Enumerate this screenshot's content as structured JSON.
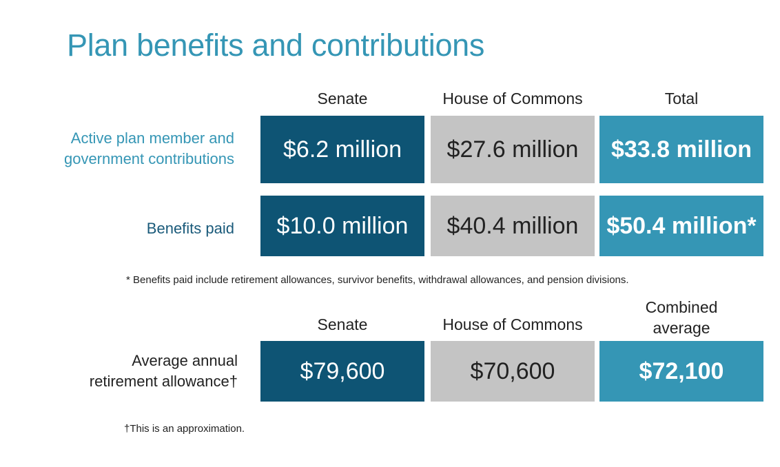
{
  "title": "Plan benefits and contributions",
  "table1": {
    "headers": [
      "Senate",
      "House of Commons",
      "Total"
    ],
    "rows": [
      {
        "label_lines": [
          "Active plan member and",
          "government contributions"
        ],
        "values": [
          "$6.2 million",
          "$27.6 million",
          "$33.8 million"
        ]
      },
      {
        "label_lines": [
          "Benefits paid"
        ],
        "values": [
          "$10.0 million",
          "$40.4 million",
          "$50.4 million*"
        ]
      }
    ],
    "footnote": "* Benefits paid include retirement allowances, survivor benefits, withdrawal allowances, and pension divisions."
  },
  "table2": {
    "headers": [
      "Senate",
      "House of Commons"
    ],
    "header3_lines": [
      "Combined",
      "average"
    ],
    "row": {
      "label_lines": [
        "Average annual",
        "retirement allowance†"
      ],
      "values": [
        "$79,600",
        "$70,600",
        "$72,100"
      ]
    },
    "footnote": "†This is an approximation."
  },
  "colors": {
    "senate": "#0e5474",
    "house": "#c4c4c4",
    "total": "#3596b5",
    "title": "#3596b5"
  }
}
